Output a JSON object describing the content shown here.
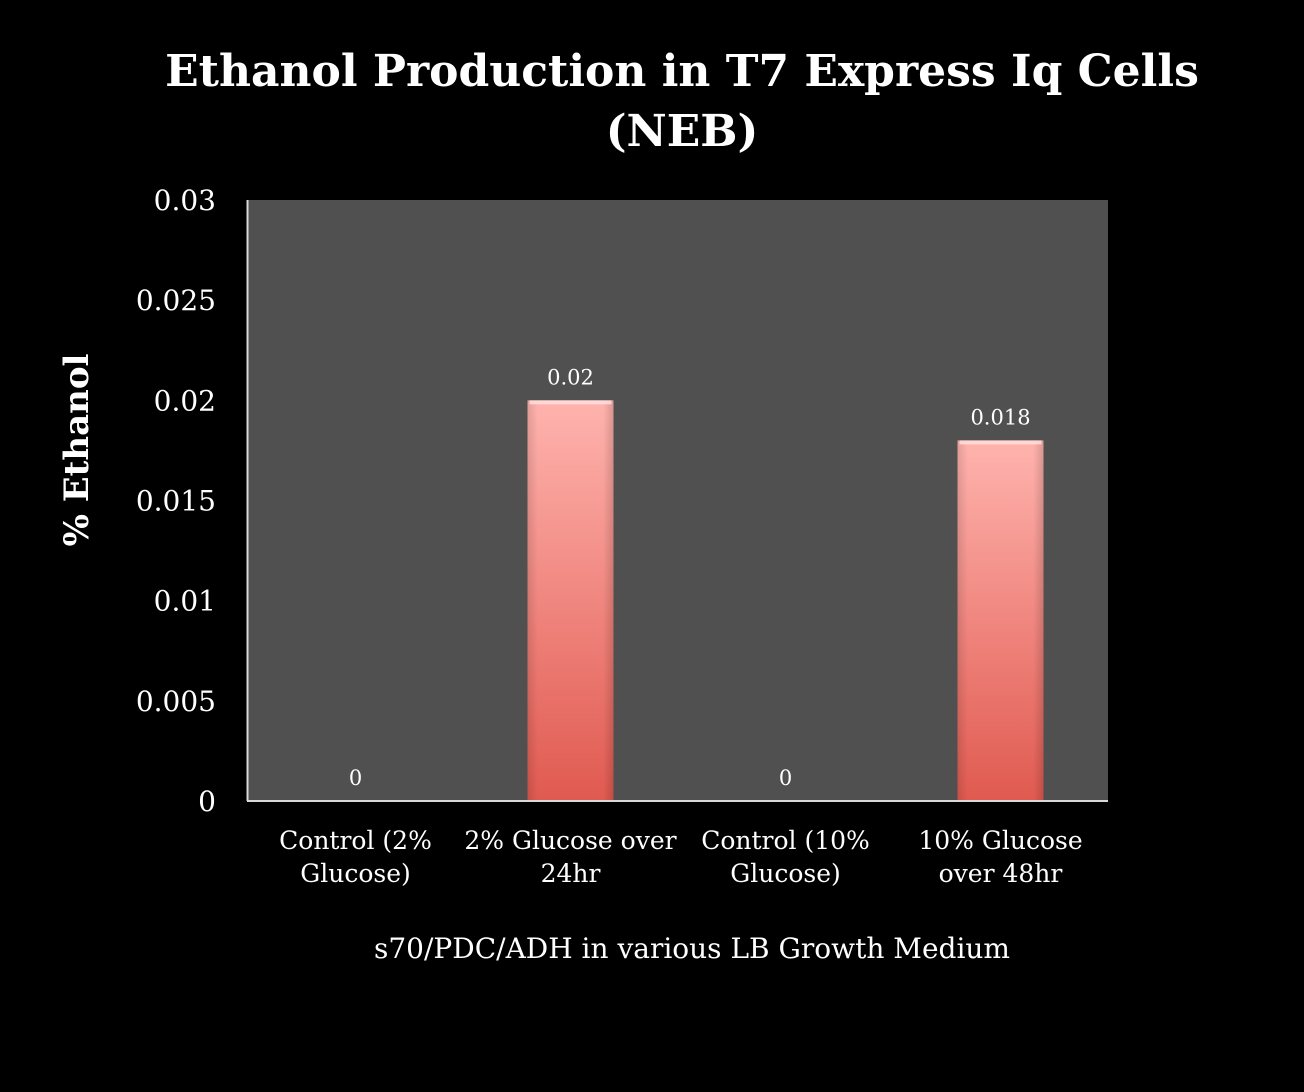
{
  "chart_data": {
    "type": "bar",
    "title_lines": [
      "Ethanol Production in T7 Express Iq Cells",
      "(NEB)"
    ],
    "xlabel": "s70/PDC/ADH in various LB Growth Medium",
    "ylabel": "% Ethanol",
    "categories": [
      [
        "Control (2%",
        "Glucose)"
      ],
      [
        "2% Glucose over",
        "24hr"
      ],
      [
        "Control (10%",
        "Glucose)"
      ],
      [
        "10% Glucose",
        "over 48hr"
      ]
    ],
    "values": [
      0,
      0.02,
      0,
      0.018
    ],
    "data_labels": [
      "0",
      "0.02",
      "0",
      "0.018"
    ],
    "ylim": [
      0,
      0.03
    ],
    "yticks": [
      "0",
      "0.005",
      "0.01",
      "0.015",
      "0.02",
      "0.025",
      "0.03"
    ],
    "grid": false,
    "legend": "none",
    "colors": {
      "background": "#000000",
      "plot_area": "#505050",
      "bar_top": "#ffb3ae",
      "bar_bottom": "#e05a50",
      "axis": "#d9d9d9",
      "text": "#ffffff"
    }
  }
}
